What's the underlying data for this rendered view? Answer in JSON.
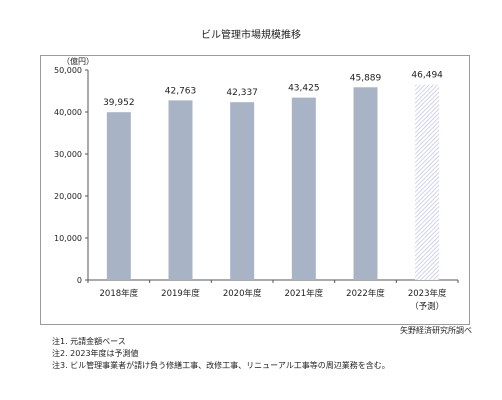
{
  "chart_data": {
    "type": "bar",
    "title": "ビル管理市場規模推移",
    "unit_label": "（億円）",
    "categories": [
      "2018年度",
      "2019年度",
      "2020年度",
      "2021年度",
      "2022年度",
      "2023年度"
    ],
    "forecast_label": "（予測）",
    "values": [
      39952,
      42763,
      42337,
      43425,
      45889,
      46494
    ],
    "value_labels": [
      "39,952",
      "42,763",
      "42,337",
      "43,425",
      "45,889",
      "46,494"
    ],
    "forecast_index": 5,
    "ylim": [
      0,
      50000
    ],
    "yticks": [
      0,
      10000,
      20000,
      30000,
      40000,
      50000
    ],
    "ytick_labels": [
      "0",
      "10,000",
      "20,000",
      "30,000",
      "40,000",
      "50,000"
    ],
    "grid": false,
    "colors": {
      "bar": "#a9b3c6",
      "forecast_hatch": "#c3c9e6",
      "axis": "#555555"
    }
  },
  "source": "矢野経済研究所調べ",
  "notes": [
    "注1.  元請金額ベース",
    "注2.  2023年度は予測値",
    "注3.  ビル管理事業者が請け負う修繕工事、改修工事、リニューアル工事等の周辺業務を含む。"
  ]
}
